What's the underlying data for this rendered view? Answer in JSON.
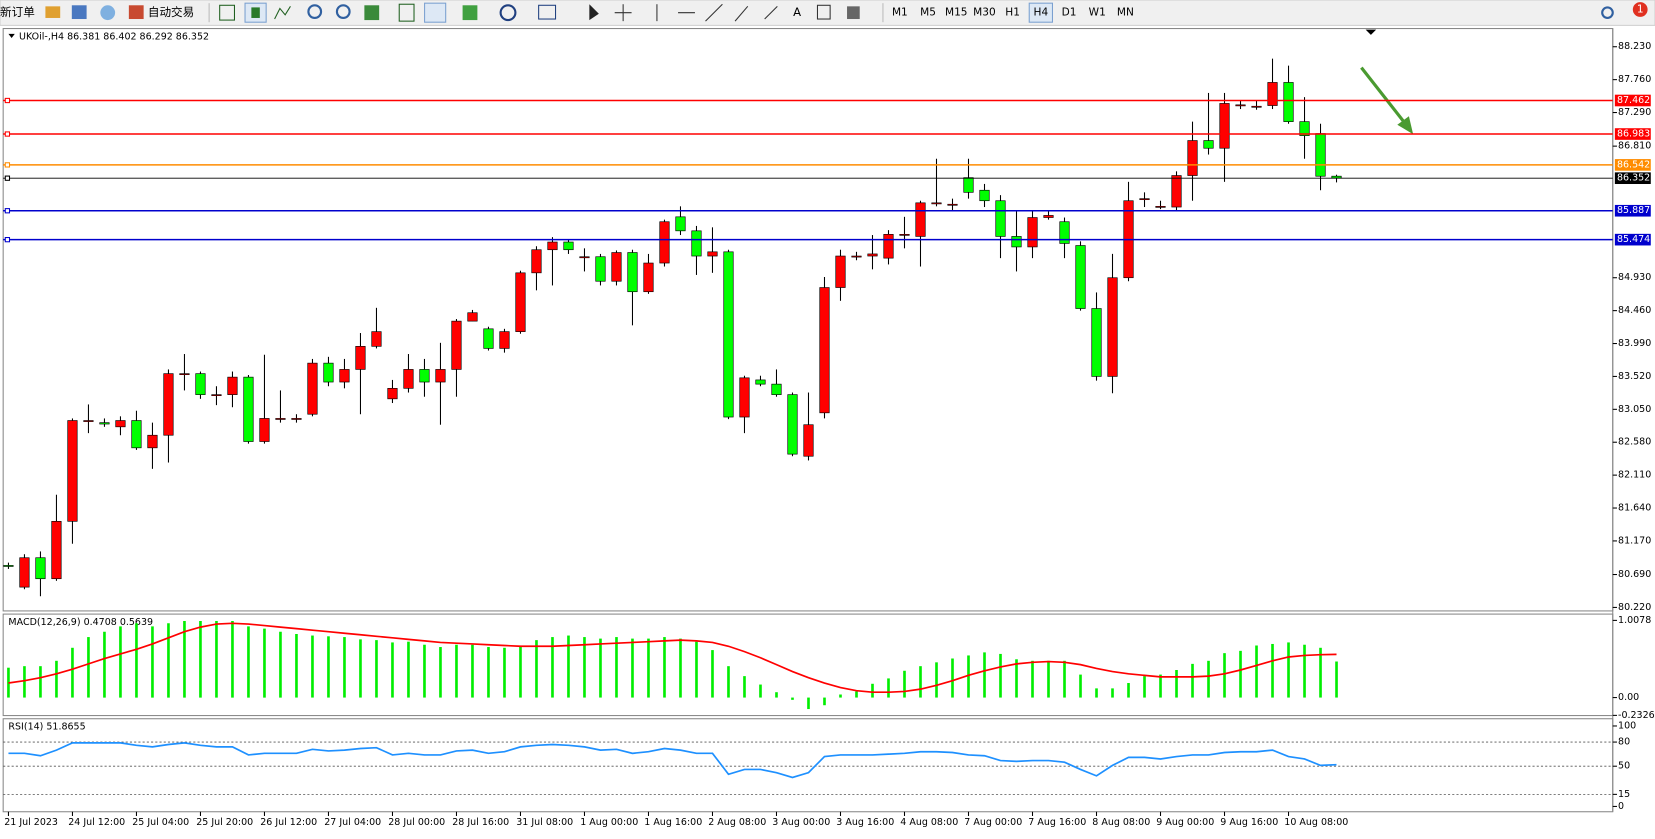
{
  "toolbar": {
    "new_order": "新订单",
    "auto_trading": "自动交易",
    "text_tool": "A",
    "timeframes": [
      "M1",
      "M5",
      "M15",
      "M30",
      "H1",
      "H4",
      "D1",
      "W1",
      "MN"
    ],
    "active_timeframe": "H4",
    "notifications": "1"
  },
  "chart_data": [
    {
      "type": "candlestick",
      "title": "UKOil-,H4 86.381 86.402 86.292 86.352",
      "categories": [
        "21 Jul 2023",
        null,
        null,
        null,
        "24 Jul 12:00",
        null,
        null,
        null,
        "25 Jul 04:00",
        null,
        null,
        null,
        "25 Jul 20:00",
        null,
        null,
        null,
        "26 Jul 12:00",
        null,
        null,
        null,
        "27 Jul 04:00",
        null,
        null,
        null,
        "28 Jul 00:00",
        null,
        null,
        null,
        "28 Jul 16:00",
        null,
        null,
        null,
        "31 Jul 08:00",
        null,
        null,
        null,
        "1 Aug 00:00",
        null,
        null,
        null,
        "1 Aug 16:00",
        null,
        null,
        null,
        "2 Aug 08:00",
        null,
        null,
        null,
        "3 Aug 00:00",
        null,
        null,
        null,
        "3 Aug 16:00",
        null,
        null,
        null,
        "4 Aug 08:00",
        null,
        null,
        null,
        "7 Aug 00:00",
        null,
        null,
        null,
        "7 Aug 16:00",
        null,
        null,
        null,
        "8 Aug 08:00",
        null,
        null,
        null,
        "9 Aug 00:00",
        null,
        null,
        null,
        "9 Aug 16:00",
        null,
        null,
        null,
        "10 Aug 08:00",
        null,
        null,
        null
      ],
      "open": [
        80.82,
        80.51,
        80.93,
        80.63,
        81.45,
        82.89,
        82.86,
        82.8,
        82.89,
        82.5,
        82.68,
        83.56,
        83.56,
        83.26,
        83.26,
        83.51,
        82.59,
        82.92,
        82.92,
        82.98,
        83.71,
        83.44,
        83.62,
        83.95,
        83.2,
        83.35,
        83.62,
        83.44,
        83.62,
        84.31,
        84.2,
        83.92,
        84.16,
        85.0,
        85.33,
        85.44,
        85.23,
        85.23,
        84.88,
        85.29,
        84.73,
        85.14,
        85.8,
        85.6,
        85.24,
        85.3,
        82.94,
        83.47,
        83.41,
        83.26,
        82.38,
        83.0,
        84.79,
        85.24,
        85.24,
        85.21,
        85.55,
        85.52,
        86.0,
        85.98,
        86.36,
        86.18,
        86.03,
        85.52,
        85.37,
        85.79,
        85.73,
        85.39,
        84.49,
        83.52,
        84.93,
        86.06,
        85.95,
        85.94,
        86.39,
        86.89,
        86.78,
        87.4,
        87.38,
        87.39,
        87.72,
        87.16,
        86.99,
        86.381
      ],
      "high": [
        80.86,
        80.98,
        81.02,
        81.83,
        82.92,
        83.12,
        82.92,
        82.95,
        83.03,
        82.86,
        83.62,
        83.84,
        83.59,
        83.38,
        83.59,
        83.54,
        83.83,
        83.32,
        82.98,
        83.77,
        83.8,
        83.77,
        84.14,
        84.5,
        83.47,
        83.84,
        83.77,
        84.0,
        84.34,
        84.47,
        84.23,
        84.2,
        85.03,
        85.38,
        85.51,
        85.48,
        85.35,
        85.27,
        85.32,
        85.33,
        85.27,
        85.76,
        85.95,
        85.67,
        85.65,
        85.33,
        83.53,
        83.53,
        83.62,
        83.29,
        83.29,
        84.94,
        85.33,
        85.3,
        85.54,
        85.61,
        85.8,
        86.03,
        86.63,
        86.06,
        86.63,
        86.27,
        86.11,
        85.88,
        85.88,
        85.88,
        85.79,
        85.45,
        84.72,
        85.27,
        86.3,
        86.15,
        86.03,
        86.45,
        87.16,
        87.57,
        87.57,
        87.46,
        87.46,
        88.06,
        87.96,
        87.51,
        87.13,
        86.402
      ],
      "low": [
        80.77,
        80.48,
        80.38,
        80.6,
        81.13,
        82.71,
        82.8,
        82.68,
        82.47,
        82.2,
        82.29,
        83.32,
        83.2,
        83.11,
        83.08,
        82.56,
        82.56,
        82.86,
        82.86,
        82.95,
        83.38,
        83.35,
        82.98,
        83.92,
        83.14,
        83.29,
        83.23,
        82.83,
        83.23,
        84.31,
        83.89,
        83.86,
        84.13,
        84.75,
        84.82,
        85.27,
        85.02,
        84.82,
        84.82,
        84.25,
        84.7,
        85.09,
        85.54,
        84.97,
        85.0,
        82.91,
        82.71,
        83.38,
        83.23,
        82.38,
        82.32,
        82.92,
        84.6,
        85.18,
        85.05,
        85.12,
        85.35,
        85.09,
        85.95,
        85.88,
        86.06,
        85.94,
        85.21,
        85.02,
        85.21,
        85.76,
        85.21,
        84.46,
        83.46,
        83.28,
        84.88,
        85.94,
        85.91,
        85.89,
        86.03,
        86.69,
        86.3,
        87.34,
        87.33,
        87.34,
        87.13,
        86.63,
        86.18,
        86.292
      ],
      "close": [
        80.81,
        80.93,
        80.63,
        81.45,
        82.89,
        82.89,
        82.84,
        82.89,
        82.5,
        82.68,
        83.56,
        83.56,
        83.26,
        83.26,
        83.51,
        82.59,
        82.92,
        82.92,
        82.92,
        83.71,
        83.44,
        83.62,
        83.95,
        84.16,
        83.35,
        83.62,
        83.44,
        83.62,
        84.31,
        84.43,
        83.92,
        84.16,
        85.0,
        85.33,
        85.44,
        85.33,
        85.23,
        84.88,
        85.29,
        84.73,
        85.14,
        85.73,
        85.6,
        85.24,
        85.3,
        82.94,
        83.5,
        83.41,
        83.26,
        82.41,
        82.83,
        84.79,
        85.24,
        85.24,
        85.27,
        85.55,
        85.55,
        86.0,
        86.0,
        85.98,
        86.15,
        86.03,
        85.52,
        85.37,
        85.79,
        85.82,
        85.42,
        84.49,
        83.52,
        84.93,
        86.03,
        86.06,
        85.95,
        86.39,
        86.89,
        86.78,
        87.42,
        87.4,
        87.38,
        87.72,
        87.16,
        86.96,
        86.38,
        86.352
      ],
      "up_color": "#ff0000",
      "down_color": "#00ff00",
      "ylim": [
        80.17,
        88.49
      ],
      "yticks": [
        {
          "value": 88.23,
          "label": "88.230"
        },
        {
          "value": 87.76,
          "label": "87.760"
        },
        {
          "value": 87.29,
          "label": "87.290"
        },
        {
          "value": 86.81,
          "label": "86.810"
        },
        {
          "value": 84.93,
          "label": "84.930"
        },
        {
          "value": 84.46,
          "label": "84.460"
        },
        {
          "value": 83.99,
          "label": "83.990"
        },
        {
          "value": 83.52,
          "label": "83.520"
        },
        {
          "value": 83.05,
          "label": "83.050"
        },
        {
          "value": 82.58,
          "label": "82.580"
        },
        {
          "value": 82.11,
          "label": "82.110"
        },
        {
          "value": 81.64,
          "label": "81.640"
        },
        {
          "value": 81.17,
          "label": "81.170"
        },
        {
          "value": 80.69,
          "label": "80.690"
        },
        {
          "value": 80.22,
          "label": "80.220"
        }
      ],
      "hlines": [
        {
          "value": 87.462,
          "color": "#ff0000"
        },
        {
          "value": 86.983,
          "color": "#ff0000"
        },
        {
          "value": 86.542,
          "color": "#ff8c00"
        },
        {
          "value": 86.352,
          "color": "#000000"
        },
        {
          "value": 85.887,
          "color": "#0000cd"
        },
        {
          "value": 85.474,
          "color": "#0000cd"
        }
      ]
    },
    {
      "type": "macd",
      "title": "MACD(12,26,9) 0.4708 0.5639",
      "series": [
        {
          "kind": "histogram",
          "color": "#00ee00",
          "values": [
            0.39,
            0.41,
            0.41,
            0.48,
            0.65,
            0.79,
            0.86,
            0.93,
            0.97,
            0.93,
            0.97,
            1.0,
            1.0,
            1.0,
            1.0,
            0.93,
            0.9,
            0.86,
            0.83,
            0.81,
            0.8,
            0.79,
            0.76,
            0.75,
            0.72,
            0.73,
            0.69,
            0.66,
            0.69,
            0.69,
            0.66,
            0.65,
            0.68,
            0.75,
            0.79,
            0.81,
            0.79,
            0.77,
            0.79,
            0.77,
            0.77,
            0.79,
            0.77,
            0.73,
            0.62,
            0.41,
            0.28,
            0.17,
            0.07,
            -0.03,
            -0.15,
            -0.1,
            0.04,
            0.08,
            0.18,
            0.25,
            0.35,
            0.41,
            0.46,
            0.51,
            0.55,
            0.59,
            0.57,
            0.5,
            0.48,
            0.48,
            0.48,
            0.3,
            0.12,
            0.12,
            0.19,
            0.28,
            0.3,
            0.36,
            0.44,
            0.48,
            0.58,
            0.61,
            0.68,
            0.7,
            0.72,
            0.69,
            0.65,
            0.4708
          ]
        },
        {
          "kind": "line",
          "color": "#ff0000",
          "values": [
            0.19,
            0.22,
            0.26,
            0.31,
            0.37,
            0.44,
            0.51,
            0.57,
            0.63,
            0.7,
            0.78,
            0.86,
            0.92,
            0.96,
            0.97,
            0.96,
            0.94,
            0.92,
            0.9,
            0.88,
            0.86,
            0.84,
            0.82,
            0.8,
            0.78,
            0.76,
            0.74,
            0.72,
            0.71,
            0.7,
            0.69,
            0.68,
            0.67,
            0.67,
            0.67,
            0.68,
            0.69,
            0.7,
            0.71,
            0.72,
            0.73,
            0.74,
            0.75,
            0.74,
            0.72,
            0.67,
            0.6,
            0.52,
            0.43,
            0.34,
            0.26,
            0.19,
            0.13,
            0.09,
            0.07,
            0.07,
            0.08,
            0.11,
            0.16,
            0.22,
            0.29,
            0.35,
            0.4,
            0.44,
            0.46,
            0.47,
            0.46,
            0.43,
            0.38,
            0.34,
            0.31,
            0.29,
            0.27,
            0.27,
            0.27,
            0.28,
            0.31,
            0.36,
            0.42,
            0.48,
            0.53,
            0.55,
            0.56,
            0.5639
          ]
        }
      ],
      "ylim": [
        -0.235,
        1.09
      ],
      "yticks": [
        1.0078,
        {
          "value": 0,
          "label": "0.00"
        },
        -0.2326
      ]
    },
    {
      "type": "rsi",
      "title": "RSI(14) 51.8655",
      "color": "#1e90ff",
      "values": [
        66,
        66,
        63,
        70,
        79,
        79,
        79,
        79,
        76,
        74,
        77,
        79,
        76,
        74,
        74,
        64,
        66,
        66,
        66,
        71,
        69,
        70,
        72,
        73,
        64,
        66,
        64,
        64,
        69,
        70,
        66,
        68,
        74,
        76,
        77,
        76,
        74,
        70,
        71,
        66,
        68,
        72,
        70,
        66,
        66,
        40,
        46,
        46,
        42,
        36,
        42,
        62,
        64,
        64,
        64,
        65,
        66,
        68,
        68,
        67,
        64,
        63,
        57,
        56,
        57,
        57,
        55,
        46,
        38,
        51,
        61,
        61,
        59,
        62,
        64,
        64,
        67,
        68,
        68,
        70,
        62,
        59,
        51,
        51.8655
      ],
      "ylim": [
        -6.6,
        109
      ],
      "yticks": [
        100,
        80,
        50,
        15,
        0
      ],
      "levels": [
        80,
        50,
        15
      ]
    }
  ]
}
